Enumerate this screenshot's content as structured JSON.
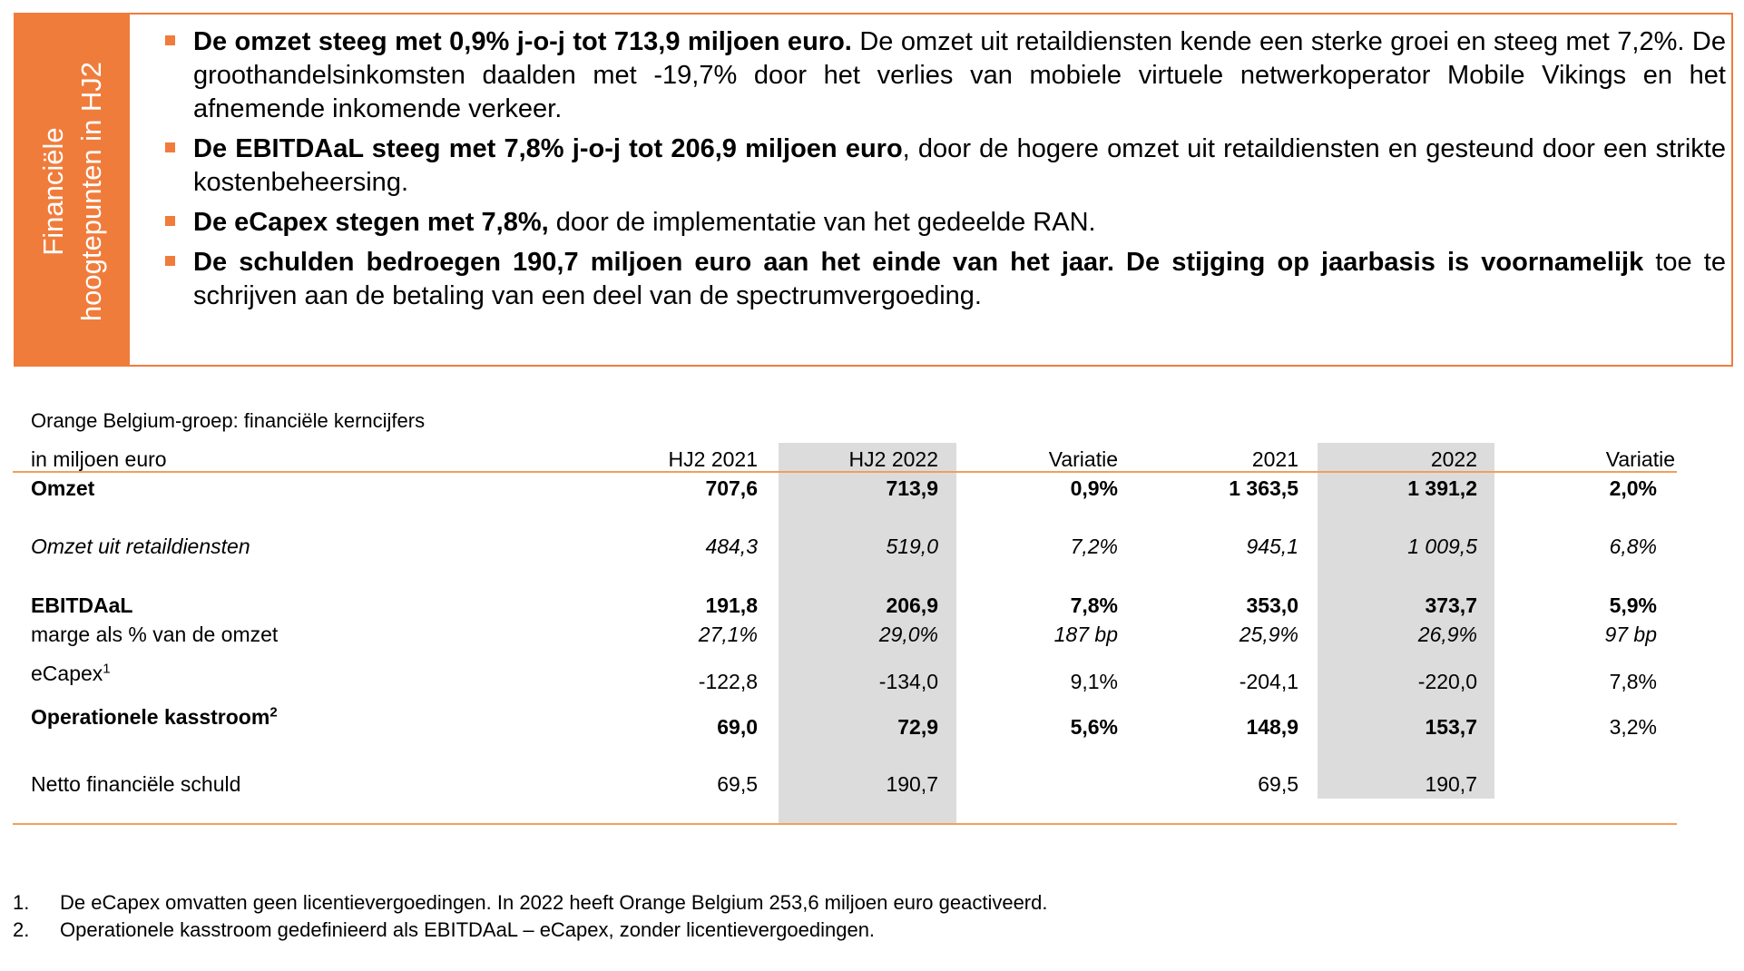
{
  "highlights": {
    "side_title_line1": "Financiële",
    "side_title_line2": "hoogtepunten in HJ2",
    "bullets": [
      {
        "bold": "De omzet steeg met 0,9% j-o-j tot 713,9 miljoen euro.",
        "text": " De omzet uit retaildiensten kende een sterke groei en steeg met 7,2%. De groothandelsinkomsten daalden met -19,7% door het verlies van mobiele virtuele netwerkoperator Mobile Vikings en het afnemende inkomende verkeer."
      },
      {
        "bold": "De EBITDAaL steeg met 7,8% j-o-j tot 206,9 miljoen euro",
        "text": ", door de hogere omzet uit retaildiensten en gesteund door een strikte kostenbeheersing."
      },
      {
        "bold": "De eCapex stegen met 7,8%,",
        "text": " door de implementatie van het gedeelde RAN."
      },
      {
        "bold": "De schulden bedroegen 190,7 miljoen euro aan het einde van het jaar. De stijging op jaarbasis is voornamelijk",
        "text": " toe te schrijven aan de betaling van een deel van de spectrumvergoeding."
      }
    ]
  },
  "table": {
    "title": "Orange Belgium-groep: financiële kerncijfers",
    "headers": [
      "in miljoen euro",
      "HJ2 2021",
      "HJ2 2022",
      "Variatie",
      "2021",
      "2022",
      "Variatie"
    ],
    "rows": {
      "omzet": [
        "Omzet",
        "707,6",
        "713,9",
        "0,9%",
        "1 363,5",
        "1 391,2",
        "2,0%"
      ],
      "retail": [
        "Omzet uit retaildiensten",
        "484,3",
        "519,0",
        "7,2%",
        "945,1",
        "1 009,5",
        "6,8%"
      ],
      "ebitdaal": [
        "EBITDAaL",
        "191,8",
        "206,9",
        "7,8%",
        "353,0",
        "373,7",
        "5,9%"
      ],
      "marge": [
        "marge als % van de omzet",
        "27,1%",
        "29,0%",
        "187 bp",
        "25,9%",
        "26,9%",
        "97 bp"
      ],
      "ecapex": [
        "eCapex",
        "-122,8",
        "-134,0",
        "9,1%",
        "-204,1",
        "-220,0",
        "7,8%"
      ],
      "ecapex_sup": "1",
      "kasstroom": [
        "Operationele kasstroom",
        "69,0",
        "72,9",
        "5,6%",
        "148,9",
        "153,7",
        "3,2%"
      ],
      "kasstroom_sup": "2",
      "schuld": [
        "Netto financiële schuld",
        "69,5",
        "190,7",
        "",
        "69,5",
        "190,7",
        ""
      ]
    }
  },
  "footnotes": [
    {
      "num": "1.",
      "text": "De eCapex omvatten geen licentievergoedingen. In 2022 heeft Orange Belgium 253,6 miljoen euro geactiveerd."
    },
    {
      "num": "2.",
      "text": "Operationele kasstroom gedefinieerd als EBITDAaL – eCapex, zonder licentievergoedingen."
    }
  ],
  "colors": {
    "accent": "#f07c3b",
    "shade": "#dcdcdc",
    "rule": "#f0a05a"
  }
}
